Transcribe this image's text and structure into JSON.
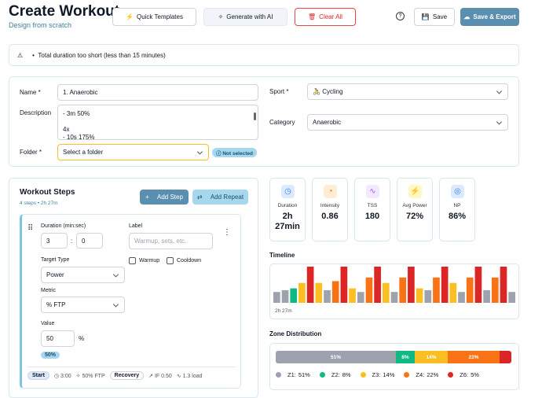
{
  "header": {
    "title": "Create Workout",
    "subtitle": "Design from scratch"
  },
  "toolbar": {
    "quick_templates": "Quick Templates",
    "generate_ai": "Generate with AI",
    "clear_all": "Clear All",
    "save": "Save",
    "save_export": "Save & Export"
  },
  "alert": "Total duration too short (less than 15 minutes)",
  "form": {
    "name_label": "Name *",
    "name_value": "1. Anaerobic",
    "description_label": "Description",
    "description_value": "- 3m 50%\n\n4x\n- 10s 175%",
    "folder_label": "Folder *",
    "folder_placeholder": "Select a folder",
    "folder_status": "Not selected",
    "sport_label": "Sport *",
    "sport_value": "Cycling",
    "category_label": "Category",
    "category_value": "Anaerobic"
  },
  "steps": {
    "title": "Workout Steps",
    "summary": "4 steps • 2h 27m",
    "add_step": "Add Step",
    "add_repeat": "Add Repeat",
    "step": {
      "duration_label": "Duration (min:sec)",
      "minutes": "3",
      "separator": ":",
      "seconds": "0",
      "label_label": "Label",
      "label_placeholder": "Warmup, sets, etc.",
      "warmup": "Warmup",
      "cooldown": "Cooldown",
      "target_type_label": "Target Type",
      "target_type": "Power",
      "metric_label": "Metric",
      "metric": "% FTP",
      "value_label": "Value",
      "value": "50",
      "unit": "%",
      "badge": "50%",
      "footer": [
        "Start",
        "3:00",
        "50% FTP",
        "Recovery",
        "IF 0.50",
        "1.3 load"
      ]
    }
  },
  "metrics": [
    {
      "label": "Duration",
      "value": "2h 27min"
    },
    {
      "label": "Intensity",
      "value": "0.86"
    },
    {
      "label": "TSS",
      "value": "180"
    },
    {
      "label": "Avg Power",
      "value": "72%"
    },
    {
      "label": "NP",
      "value": "86%"
    }
  ],
  "timeline": {
    "title": "Timeline",
    "duration": "2h 27m",
    "bars": [
      {
        "value": 30,
        "color": "#9ca3af"
      },
      {
        "value": 35,
        "color": "#9ca3af"
      },
      {
        "value": 40,
        "color": "#10b981"
      },
      {
        "value": 55,
        "color": "#fbbf24"
      },
      {
        "value": 100,
        "color": "#dc2626"
      },
      {
        "value": 55,
        "color": "#fbbf24"
      },
      {
        "value": 35,
        "color": "#9ca3af"
      },
      {
        "value": 60,
        "color": "#f97316"
      },
      {
        "value": 100,
        "color": "#dc2626"
      },
      {
        "value": 40,
        "color": "#fbbf24"
      },
      {
        "value": 30,
        "color": "#9ca3af"
      },
      {
        "value": 70,
        "color": "#f97316"
      },
      {
        "value": 100,
        "color": "#dc2626"
      },
      {
        "value": 55,
        "color": "#fbbf24"
      },
      {
        "value": 30,
        "color": "#9ca3af"
      },
      {
        "value": 70,
        "color": "#f97316"
      },
      {
        "value": 100,
        "color": "#dc2626"
      },
      {
        "value": 40,
        "color": "#fbbf24"
      },
      {
        "value": 35,
        "color": "#9ca3af"
      },
      {
        "value": 70,
        "color": "#f97316"
      },
      {
        "value": 100,
        "color": "#dc2626"
      },
      {
        "value": 55,
        "color": "#fbbf24"
      },
      {
        "value": 30,
        "color": "#9ca3af"
      },
      {
        "value": 70,
        "color": "#f97316"
      },
      {
        "value": 100,
        "color": "#dc2626"
      },
      {
        "value": 35,
        "color": "#9ca3af"
      },
      {
        "value": 70,
        "color": "#f97316"
      },
      {
        "value": 100,
        "color": "#dc2626"
      },
      {
        "value": 30,
        "color": "#9ca3af"
      }
    ]
  },
  "zones": {
    "title": "Zone Distribution",
    "items": [
      {
        "name": "Z1:",
        "value": 51,
        "label": "51%",
        "color": "#9ca3af"
      },
      {
        "name": "Z2:",
        "value": 8,
        "label": "8%",
        "color": "#10b981"
      },
      {
        "name": "Z3:",
        "value": 14,
        "label": "14%",
        "color": "#fbbf24"
      },
      {
        "name": "Z4:",
        "value": 22,
        "label": "22%",
        "color": "#f97316"
      },
      {
        "name": "Z6:",
        "value": 5,
        "label": "5%",
        "color": "#dc2626"
      }
    ]
  }
}
